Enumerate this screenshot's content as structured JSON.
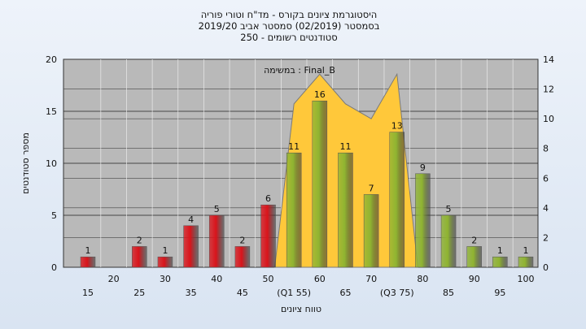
{
  "chart_data": {
    "type": "bar",
    "title_lines": [
      "היסטוגרמת ציונים בקורס - מד\"ח וטורי פוריה",
      "בסמסטר  (02/2019)  סמסטר אביב 2019/20",
      "סטודנטים רשומים - 250"
    ],
    "ylabel": "מספר סטודנטים",
    "xlabel": "טווח ציונים",
    "annotation": "במשימה : Final_B",
    "ylim": [
      0,
      20
    ],
    "yticks": [
      0,
      5,
      10,
      15,
      20
    ],
    "y2lim": [
      0,
      14
    ],
    "y2ticks": [
      0,
      2,
      4,
      6,
      8,
      10,
      12,
      14
    ],
    "categories": [
      "15",
      "20",
      "25",
      "30",
      "35",
      "40",
      "45",
      "50",
      "(Q1 55)",
      "60",
      "65",
      "70",
      "(Q3 75)",
      "80",
      "85",
      "90",
      "95",
      "100"
    ],
    "values": [
      1,
      0,
      2,
      1,
      4,
      5,
      2,
      6,
      11,
      16,
      11,
      7,
      13,
      9,
      5,
      2,
      1,
      1
    ],
    "bar_colors": [
      "#d9141b",
      "#d9141b",
      "#d9141b",
      "#d9141b",
      "#d9141b",
      "#d9141b",
      "#d9141b",
      "#d9141b",
      "#8fb431",
      "#8fb431",
      "#8fb431",
      "#8fb431",
      "#8fb431",
      "#8fb431",
      "#8fb431",
      "#8fb431",
      "#8fb431",
      "#8fb431"
    ],
    "area_series": {
      "color": "#ffc83a",
      "x_categories": [
        "50",
        "(Q1 55)",
        "60",
        "65",
        "70",
        "(Q3 75)",
        "80"
      ],
      "values": [
        0,
        11,
        13,
        11,
        10,
        13,
        0
      ]
    },
    "grid": true,
    "plot_background": "#b9b9b9"
  }
}
